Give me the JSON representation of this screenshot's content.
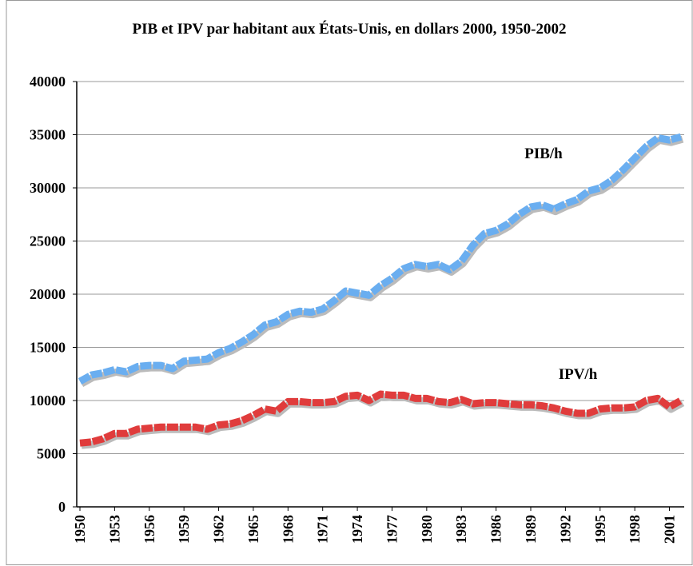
{
  "chart_data": {
    "type": "line",
    "title": "PIB et IPV par habitant aux États-Unis, en dollars 2000, 1950-2002",
    "annotations": [
      "PIB/h",
      "IPV/h"
    ],
    "x": [
      1950,
      1951,
      1952,
      1953,
      1954,
      1955,
      1956,
      1957,
      1958,
      1959,
      1960,
      1961,
      1962,
      1963,
      1964,
      1965,
      1966,
      1967,
      1968,
      1969,
      1970,
      1971,
      1972,
      1973,
      1974,
      1975,
      1976,
      1977,
      1978,
      1979,
      1980,
      1981,
      1982,
      1983,
      1984,
      1985,
      1986,
      1987,
      1988,
      1989,
      1990,
      1991,
      1992,
      1993,
      1994,
      1995,
      1996,
      1997,
      1998,
      1999,
      2000,
      2001,
      2002
    ],
    "series": [
      {
        "name": "PIB/h",
        "color": "#6aaef0",
        "values": [
          11800,
          12400,
          12600,
          12900,
          12700,
          13200,
          13300,
          13300,
          13000,
          13700,
          13800,
          13900,
          14500,
          14900,
          15500,
          16200,
          17100,
          17400,
          18100,
          18400,
          18300,
          18600,
          19400,
          20300,
          20100,
          19900,
          20800,
          21500,
          22400,
          22800,
          22600,
          22800,
          22300,
          23100,
          24600,
          25700,
          26000,
          26600,
          27500,
          28200,
          28400,
          28000,
          28500,
          28900,
          29700,
          30000,
          30700,
          31700,
          32800,
          33900,
          34700,
          34500,
          34800
        ]
      },
      {
        "name": "IPV/h",
        "color": "#e03c3c",
        "values": [
          6000,
          6100,
          6400,
          6900,
          6900,
          7300,
          7400,
          7500,
          7500,
          7500,
          7500,
          7300,
          7700,
          7800,
          8100,
          8600,
          9200,
          9000,
          9900,
          9900,
          9800,
          9800,
          9900,
          10400,
          10500,
          10000,
          10600,
          10500,
          10500,
          10200,
          10200,
          9900,
          9800,
          10100,
          9700,
          9800,
          9800,
          9700,
          9600,
          9600,
          9500,
          9300,
          9000,
          8800,
          8800,
          9200,
          9300,
          9300,
          9400,
          10000,
          10200,
          9400,
          10000
        ]
      }
    ],
    "xlim": [
      1950,
      2002
    ],
    "xticks": [
      1950,
      1953,
      1956,
      1959,
      1962,
      1965,
      1968,
      1971,
      1974,
      1977,
      1980,
      1983,
      1986,
      1989,
      1992,
      1995,
      1998,
      2001
    ],
    "ylim": [
      0,
      40000
    ],
    "yticks": [
      0,
      5000,
      10000,
      15000,
      20000,
      25000,
      30000,
      35000,
      40000
    ],
    "grid": true
  }
}
